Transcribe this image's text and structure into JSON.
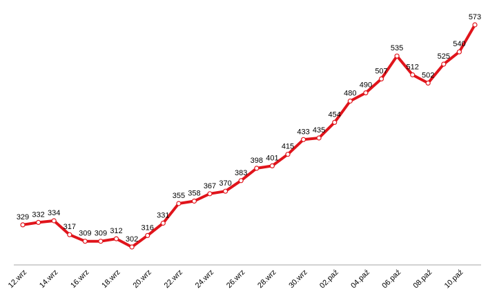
{
  "chart_data": {
    "type": "line",
    "x": [
      "12.wrz",
      "13.wrz",
      "14.wrz",
      "15.wrz",
      "16.wrz",
      "17.wrz",
      "18.wrz",
      "19.wrz",
      "20.wrz",
      "21.wrz",
      "22.wrz",
      "23.wrz",
      "24.wrz",
      "25.wrz",
      "26.wrz",
      "27.wrz",
      "28.wrz",
      "29.wrz",
      "30.wrz",
      "01.paź",
      "02.paź",
      "03.paź",
      "04.paź",
      "05.paź",
      "06.paź",
      "07.paź",
      "08.paź",
      "09.paź",
      "10.paź",
      "11.paź"
    ],
    "x_tick_labels": [
      "12.wrz",
      "14.wrz",
      "16.wrz",
      "18.wrz",
      "20.wrz",
      "22.wrz",
      "24.wrz",
      "26.wrz",
      "28.wrz",
      "30.wrz",
      "02.paź",
      "04.paź",
      "06.paź",
      "08.paź",
      "10.paź"
    ],
    "series": [
      {
        "values": [
          329,
          332,
          334,
          317,
          309,
          309,
          312,
          302,
          316,
          331,
          355,
          358,
          367,
          370,
          383,
          398,
          401,
          415,
          433,
          435,
          454,
          480,
          490,
          507,
          535,
          512,
          502,
          525,
          540,
          573
        ],
        "color": "#e0141b",
        "marker_fill": "#ffffff"
      }
    ],
    "data_labels": true,
    "title": "",
    "xlabel": "",
    "ylabel": "",
    "ylim": [
      230,
      580
    ],
    "grid": false,
    "legend": "none",
    "axis_color": "#a6a6a6"
  }
}
